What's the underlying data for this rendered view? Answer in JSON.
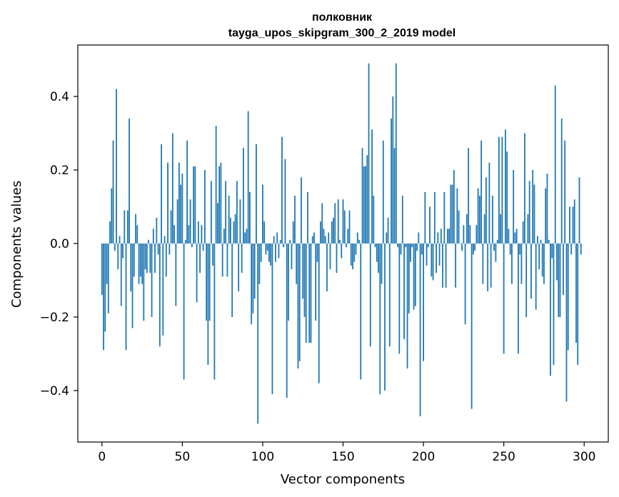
{
  "chart_data": {
    "type": "bar",
    "title_lines": [
      "полковник",
      "tayga_upos_skipgram_300_2_2019 model"
    ],
    "xlabel": "Vector components",
    "ylabel": "Components values",
    "xlim": [
      -15,
      315
    ],
    "ylim": [
      -0.54,
      0.54
    ],
    "xticks": [
      0,
      50,
      100,
      150,
      200,
      250,
      300
    ],
    "yticks": [
      -0.4,
      -0.2,
      0.0,
      0.2,
      0.4
    ],
    "ytick_labels": [
      "−0.4",
      "−0.2",
      "0.0",
      "0.2",
      "0.4"
    ],
    "bar_color": "#1f77b4",
    "grid": false,
    "values": [
      -0.14,
      -0.29,
      -0.24,
      -0.11,
      -0.19,
      0.06,
      0.15,
      0.28,
      -0.02,
      0.42,
      -0.07,
      0.02,
      -0.17,
      -0.04,
      0.09,
      -0.29,
      0.09,
      0.34,
      -0.13,
      -0.23,
      -0.09,
      0.08,
      0.05,
      -0.11,
      -0.09,
      -0.11,
      -0.21,
      -0.07,
      -0.08,
      0.01,
      -0.08,
      -0.2,
      0.04,
      -0.08,
      0.07,
      -0.03,
      -0.28,
      0.27,
      -0.25,
      0.02,
      -0.09,
      0.22,
      -0.03,
      0.09,
      0.3,
      0.05,
      -0.17,
      0.12,
      0.22,
      0.16,
      0.19,
      -0.37,
      0.01,
      0.28,
      0.05,
      0.12,
      -0.01,
      0.21,
      0.21,
      -0.16,
      0.06,
      -0.08,
      0.05,
      -0.02,
      0.2,
      -0.21,
      -0.33,
      -0.21,
      0.17,
      -0.06,
      -0.37,
      0.32,
      0.11,
      0.21,
      0.22,
      -0.09,
      0.04,
      0.17,
      -0.09,
      0.13,
      0.07,
      -0.2,
      0.06,
      0.08,
      0.17,
      -0.13,
      0.12,
      -0.08,
      0.26,
      0.03,
      0.04,
      0.36,
      0.14,
      -0.22,
      -0.19,
      -0.15,
      0.27,
      -0.49,
      -0.11,
      -0.05,
      0.16,
      0.06,
      -0.03,
      -0.02,
      -0.05,
      -0.06,
      -0.41,
      0.02,
      -0.05,
      0.03,
      -0.04,
      0.01,
      0.29,
      -0.01,
      0.23,
      -0.42,
      -0.21,
      0.01,
      -0.07,
      0.06,
      0.13,
      -0.11,
      -0.34,
      -0.32,
      0.18,
      -0.15,
      -0.2,
      -0.27,
      0.14,
      -0.27,
      -0.27,
      0.02,
      0.03,
      -0.21,
      -0.05,
      -0.38,
      0.06,
      0.11,
      0.04,
      0.02,
      -0.13,
      0.03,
      -0.07,
      0.06,
      0.07,
      0.11,
      -0.08,
      0.12,
      0.01,
      -0.04,
      0.12,
      0.09,
      -0.01,
      0.04,
      0.09,
      -0.06,
      -0.07,
      -0.05,
      -0.03,
      0.03,
      0.01,
      -0.37,
      0.26,
      0.21,
      0.21,
      0.24,
      0.49,
      -0.28,
      0.31,
      0.13,
      -0.01,
      -0.05,
      -0.08,
      -0.41,
      -0.11,
      0.28,
      -0.4,
      0.03,
      0.07,
      -0.28,
      0.34,
      0.4,
      0.26,
      0.49,
      -0.01,
      -0.3,
      -0.03,
      0.13,
      -0.26,
      -0.01,
      -0.34,
      -0.19,
      -0.05,
      -0.01,
      -0.18,
      -0.17,
      -0.02,
      0.03,
      -0.47,
      -0.03,
      -0.32,
      0.14,
      -0.06,
      -0.01,
      0.1,
      -0.09,
      -0.1,
      0.14,
      -0.08,
      0.03,
      -0.06,
      0.04,
      -0.12,
      0.14,
      -0.12,
      0.04,
      0.04,
      0.16,
      0.16,
      0.2,
      -0.12,
      0.15,
      0.09,
      0.0,
      -0.02,
      0.05,
      -0.22,
      0.08,
      0.26,
      0.05,
      -0.45,
      -0.03,
      -0.02,
      0.05,
      0.15,
      0.13,
      0.28,
      -0.11,
      0.08,
      0.18,
      -0.13,
      0.22,
      -0.12,
      0.13,
      -0.02,
      -0.05,
      0.01,
      0.29,
      0.08,
      0.29,
      -0.3,
      0.31,
      0.25,
      0.04,
      -0.03,
      -0.11,
      0.2,
      0.03,
      0.04,
      -0.3,
      -0.03,
      -0.11,
      0.06,
      0.3,
      -0.2,
      0.08,
      0.17,
      -0.15,
      0.2,
      0.16,
      -0.18,
      0.02,
      -0.07,
      0.01,
      -0.09,
      -0.11,
      0.15,
      0.19,
      0.01,
      -0.36,
      -0.04,
      -0.33,
      0.43,
      -0.1,
      -0.2,
      -0.2,
      0.34,
      -0.14,
      0.28,
      -0.43,
      -0.29,
      0.1,
      -0.03,
      0.1,
      0.12,
      -0.27,
      -0.33,
      0.18,
      -0.03
    ]
  }
}
